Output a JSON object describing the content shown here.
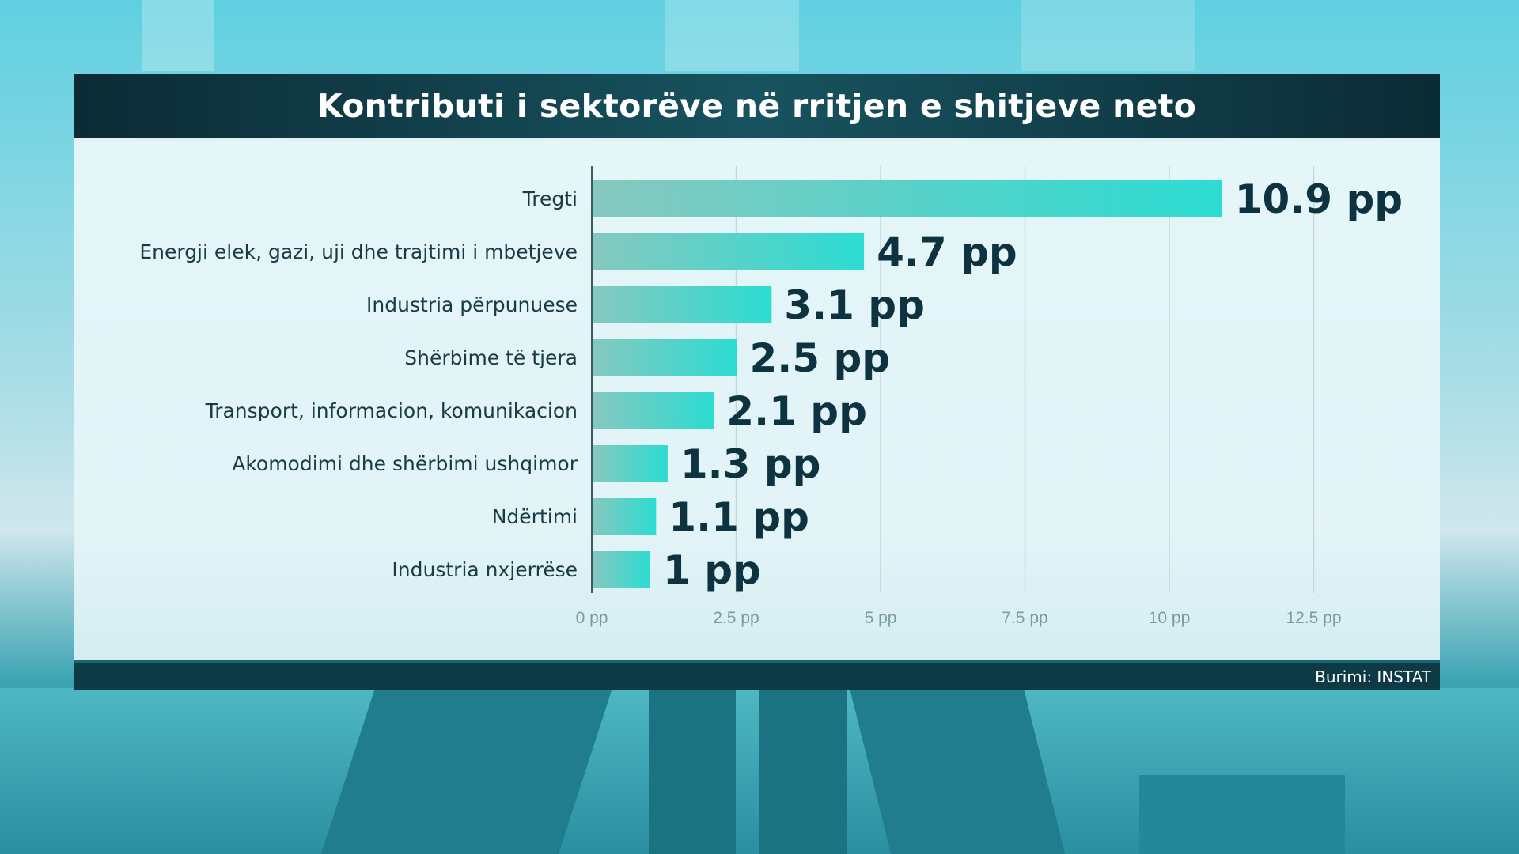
{
  "title": "Kontributi i sektorëve në rritjen e shitjeve neto",
  "source": "Burimi: INSTAT",
  "colors": {
    "bar_start": "#86c8bf",
    "bar_end": "#2cdcd2",
    "value_label": "#0d3340",
    "category_label": "#1a3a45",
    "tick_label": "#7a9aa2",
    "title_bar": "#0b2b35"
  },
  "chart_data": {
    "type": "bar",
    "orientation": "horizontal",
    "categories": [
      "Tregti",
      "Energji elek, gazi, uji dhe trajtimi i mbetjeve",
      "Industria përpunuese",
      "Shërbime të tjera",
      "Transport, informacion, komunikacion",
      "Akomodimi dhe shërbimi ushqimor",
      "Ndërtimi",
      "Industria nxjerrëse"
    ],
    "values": [
      10.9,
      4.7,
      3.1,
      2.5,
      2.1,
      1.3,
      1.1,
      1
    ],
    "value_labels": [
      "10.9 pp",
      "4.7 pp",
      "3.1 pp",
      "2.5 pp",
      "2.1 pp",
      "1.3 pp",
      "1.1 pp",
      "1 pp"
    ],
    "xlim": [
      0,
      14
    ],
    "xticks": [
      0,
      2.5,
      5,
      7.5,
      10,
      12.5
    ],
    "xtick_labels": [
      "0 pp",
      "2.5 pp",
      "5 pp",
      "7.5 pp",
      "10 pp",
      "12.5 pp"
    ],
    "grid": true
  }
}
